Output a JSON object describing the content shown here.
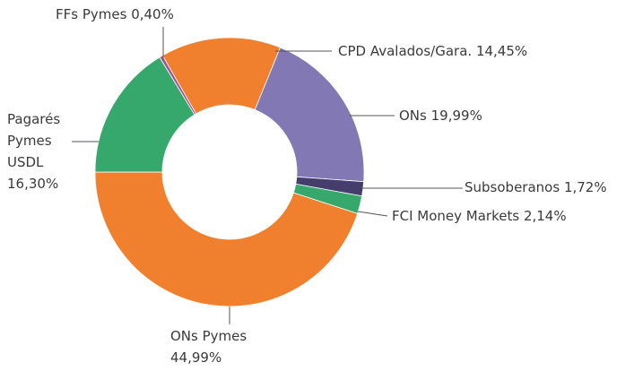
{
  "chart_data": {
    "type": "donut",
    "categories": [
      "CPD Avalados/Gara.",
      "ONs",
      "Subsoberanos",
      "FCI Money Markets",
      "ONs Pymes",
      "Pagarés Pymes USDL",
      "FFs Pymes"
    ],
    "values": [
      14.45,
      19.99,
      1.72,
      2.14,
      44.99,
      16.3,
      0.4
    ],
    "value_labels": [
      "14,45%",
      "19,99%",
      "1,72%",
      "2,14%",
      "44,99%",
      "16,30%",
      "0,40%"
    ],
    "colors": [
      "#f07f2e",
      "#8178b4",
      "#453d6b",
      "#36a86b",
      "#f07f2e",
      "#36a86b",
      "#a4529c"
    ]
  }
}
